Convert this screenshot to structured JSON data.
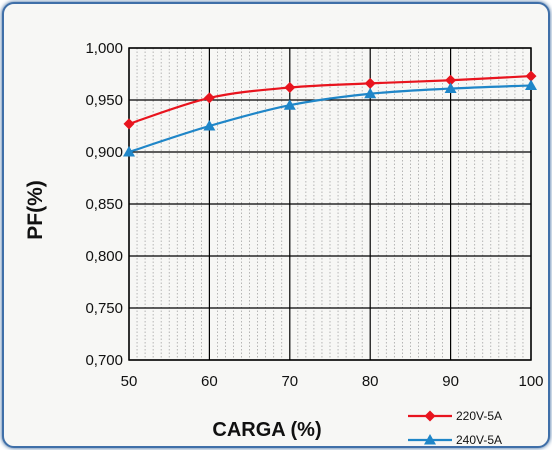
{
  "chart_data": {
    "type": "line",
    "xlabel": "CARGA (%)",
    "ylabel": "PF(%)",
    "x": [
      50,
      60,
      70,
      80,
      90,
      100
    ],
    "xlim": [
      50,
      100
    ],
    "ylim": [
      0.7,
      1.0
    ],
    "x_ticks": [
      "50",
      "60",
      "70",
      "80",
      "90",
      "100"
    ],
    "y_ticks": [
      "1,000",
      "0,950",
      "0,900",
      "0,850",
      "0,800",
      "0,750",
      "0,700"
    ],
    "grid": true,
    "legend_position": "bottom-right",
    "series": [
      {
        "name": "220V-5A",
        "color": "#e8141e",
        "marker": "diamond",
        "values": [
          0.927,
          0.952,
          0.962,
          0.966,
          0.969,
          0.973
        ]
      },
      {
        "name": "240V-5A",
        "color": "#1f86c8",
        "marker": "triangle",
        "values": [
          0.9,
          0.925,
          0.945,
          0.956,
          0.961,
          0.964
        ]
      }
    ]
  }
}
